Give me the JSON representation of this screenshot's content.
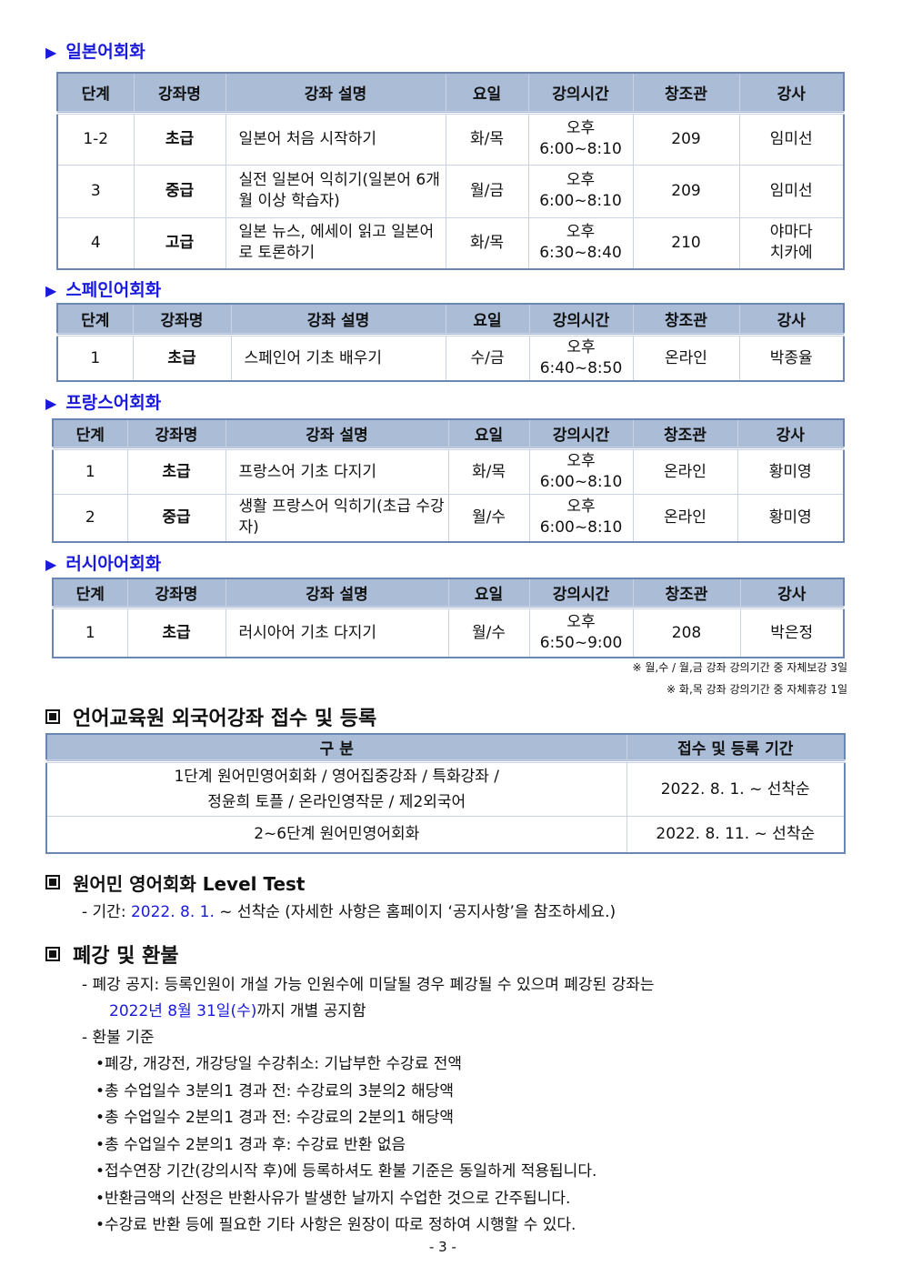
{
  "headers": [
    "단계",
    "강좌명",
    "강좌 설명",
    "요일",
    "강의시간",
    "창조관",
    "강사"
  ],
  "sections": [
    {
      "title": "일본어회화",
      "rows": [
        [
          "1-2",
          "초급",
          "일본어 처음 시작하기",
          "화/목",
          "오후\n6:00~8:10",
          "209",
          "임미선"
        ],
        [
          "3",
          "중급",
          "실전 일본어 익히기(일본어 6개월 이상 학습자)",
          "월/금",
          "오후\n6:00~8:10",
          "209",
          "임미선"
        ],
        [
          "4",
          "고급",
          "일본 뉴스, 에세이 읽고 일본어로 토론하기",
          "화/목",
          "오후\n6:30~8:40",
          "210",
          "야마다\n치카에"
        ]
      ]
    },
    {
      "title": "스페인어회화",
      "rows": [
        [
          "1",
          "초급",
          "스페인어 기초 배우기",
          "수/금",
          "오후\n6:40~8:50",
          "온라인",
          "박종율"
        ]
      ]
    },
    {
      "title": "프랑스어회화",
      "rows": [
        [
          "1",
          "초급",
          "프랑스어 기초 다지기",
          "화/목",
          "오후\n6:00~8:10",
          "온라인",
          "황미영"
        ],
        [
          "2",
          "중급",
          "생활 프랑스어 익히기(초급 수강자)",
          "월/수",
          "오후\n6:00~8:10",
          "온라인",
          "황미영"
        ]
      ]
    },
    {
      "title": "러시아어회화",
      "rows": [
        [
          "1",
          "초급",
          "러시아어 기초 다지기",
          "월/수",
          "오후\n6:50~9:00",
          "208",
          "박은정"
        ]
      ]
    }
  ],
  "notes": [
    "※ 월,수 / 월,금 강좌 강의기간 중 자체보강 3일",
    "※ 화,목 강좌 강의기간 중 자체휴강 1일"
  ],
  "registration": {
    "title": "언어교육원 외국어강좌 접수 및 등록",
    "headers": [
      "구 분",
      "접수 및 등록 기간"
    ],
    "rows": [
      [
        "1단계 원어민영어회화 / 영어집중강좌 / 특화강좌 /\n정윤희 토플 / 온라인영작문 / 제2외국어",
        "2022. 8. 1. ~ 선착순"
      ],
      [
        "2~6단계 원어민영어회화",
        "2022. 8. 11. ~ 선착순"
      ]
    ]
  },
  "level_test": {
    "title": "원어민 영어회화 Level Test",
    "prefix": "- 기간: ",
    "date": "2022. 8. 1.",
    "rest": " ~ 선착순 (자세한 사항은 홈페이지 ‘공지사항’을 참조하세요.)"
  },
  "refund": {
    "title": "폐강 및 환불",
    "notice": "- 폐강 공지: 등록인원이 개설 가능 인원수에 미달될 경우 폐강될 수 있으며 폐강된 강좌는",
    "notice_date": "2022년 8월 31일(수)",
    "notice_rest": "까지 개별 공지함",
    "criteria": "- 환불 기준",
    "items": [
      "•폐강, 개강전, 개강당일 수강취소: 기납부한 수강료 전액",
      "•총 수업일수 3분의1 경과 전: 수강료의 3분의2 해당액",
      "•총 수업일수 2분의1 경과 전: 수강료의 2분의1 해당액",
      "•총 수업일수 2분의1 경과 후: 수강료 반환 없음",
      "•접수연장 기간(강의시작 후)에 등록하셔도 환불 기준은 동일하게 적용됩니다.",
      "•반환금액의 산정은 반환사유가 발생한 날까지 수업한 것으로 간주됩니다.",
      "•수강료 반환 등에 필요한 기타 사항은 원장이 따로 정하여 시행할 수 있다."
    ]
  },
  "page_number": "- 3 -",
  "colors": {
    "accent": "#1a1adc",
    "header_bg": "#aabcd6",
    "border": "#6a86b2"
  }
}
